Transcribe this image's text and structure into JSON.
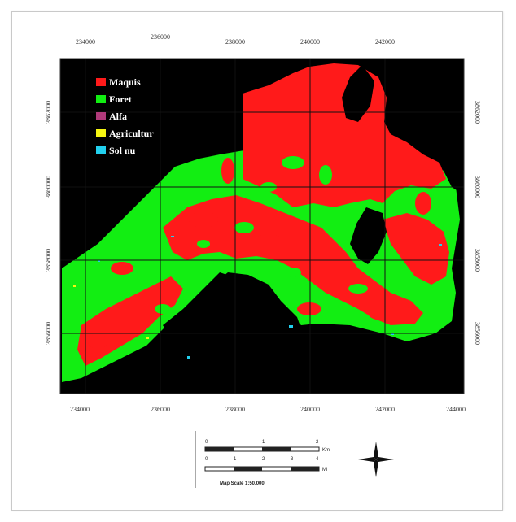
{
  "legend": {
    "items": [
      {
        "label": "Maquis",
        "color": "#ff1a1a"
      },
      {
        "label": "Foret",
        "color": "#12ee12"
      },
      {
        "label": "Alfa",
        "color": "#b03a7a"
      },
      {
        "label": "Agricultur",
        "color": "#f5f512"
      },
      {
        "label": "Sol nu",
        "color": "#22d0ee"
      }
    ]
  },
  "axes": {
    "top": [
      "234000",
      "236000",
      "238000",
      "240000",
      "242000"
    ],
    "bottom": [
      "234000",
      "236000",
      "238000",
      "240000",
      "242000",
      "244000"
    ],
    "left": [
      "3862000",
      "3860000",
      "3858000",
      "3856000"
    ],
    "right": [
      "3862000",
      "3860000",
      "3858000",
      "3856000"
    ]
  },
  "scale": {
    "km_ticks": [
      "0",
      "1",
      "2"
    ],
    "km_unit": "Km",
    "miles_ticks": [
      "0",
      "1",
      "2",
      "3",
      "4"
    ],
    "miles_unit": "Mi",
    "title": "Map Scale 1:50,000"
  },
  "colors": {
    "background": "#000000",
    "maquis": "#ff1a1a",
    "foret": "#12ee12",
    "grid": "#1a1a1a"
  }
}
